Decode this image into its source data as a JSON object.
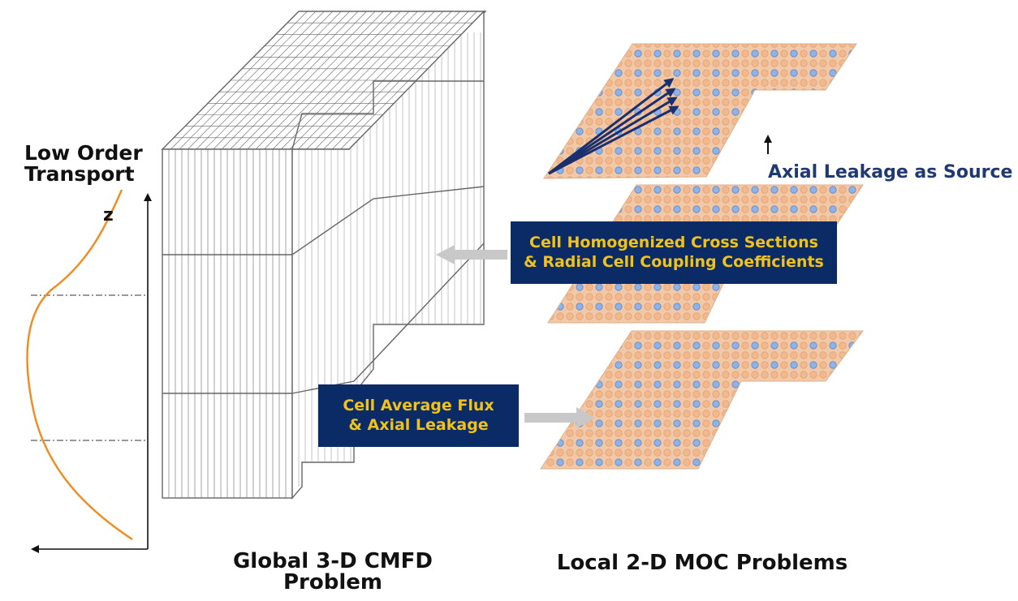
{
  "left_panel": {
    "title_line1": "Low Order",
    "title_line2": "Transport",
    "axis_label": "z"
  },
  "captions": {
    "global": "Global 3-D CMFD Problem",
    "local": "Local 2-D MOC Problems"
  },
  "labels": {
    "axial_leakage": "Axial Leakage as Source",
    "cross_sections_box": {
      "line1": "Cell Homogenized Cross Sections",
      "line2": "& Radial Cell Coupling Coefficients"
    },
    "flux_box": {
      "line1": "Cell Average Flux",
      "line2": "& Axial Leakage"
    }
  },
  "colors": {
    "flux_curve": "#f28a1e",
    "box_fill": "#0b2b66",
    "box_text": "#f0c21a",
    "plane_fill": "#f1c9a8",
    "pin_color": "#7aa6e0",
    "ray_color": "#1a2f6e",
    "transfer_arrow": "#c8c8c8",
    "axial_text": "#1f3a73"
  }
}
